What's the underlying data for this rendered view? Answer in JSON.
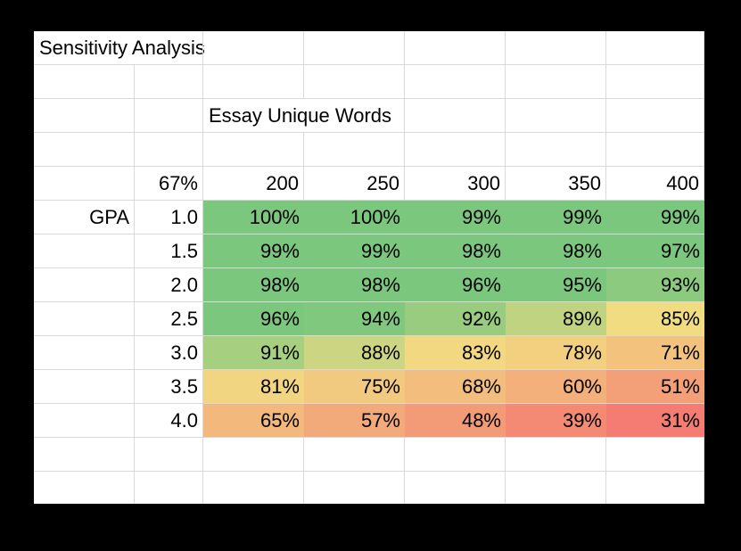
{
  "sheet": {
    "title": "Sensitivity Analysis",
    "column_header_title": "Essay Unique Words",
    "corner_value": "67%",
    "row_header_title": "GPA",
    "columns": [
      "200",
      "250",
      "300",
      "350",
      "400"
    ],
    "rows": [
      {
        "label": "1.0",
        "values": [
          "100%",
          "100%",
          "99%",
          "99%",
          "99%"
        ]
      },
      {
        "label": "1.5",
        "values": [
          "99%",
          "99%",
          "98%",
          "98%",
          "97%"
        ]
      },
      {
        "label": "2.0",
        "values": [
          "98%",
          "98%",
          "96%",
          "95%",
          "93%"
        ]
      },
      {
        "label": "2.5",
        "values": [
          "96%",
          "94%",
          "92%",
          "89%",
          "85%"
        ]
      },
      {
        "label": "3.0",
        "values": [
          "91%",
          "88%",
          "83%",
          "78%",
          "71%"
        ]
      },
      {
        "label": "3.5",
        "values": [
          "81%",
          "75%",
          "68%",
          "60%",
          "51%"
        ]
      },
      {
        "label": "4.0",
        "values": [
          "65%",
          "57%",
          "48%",
          "39%",
          "31%"
        ]
      }
    ],
    "colors": {
      "high": "#7bc77e",
      "mid": "#f2dc82",
      "low": "#f47c72"
    }
  }
}
